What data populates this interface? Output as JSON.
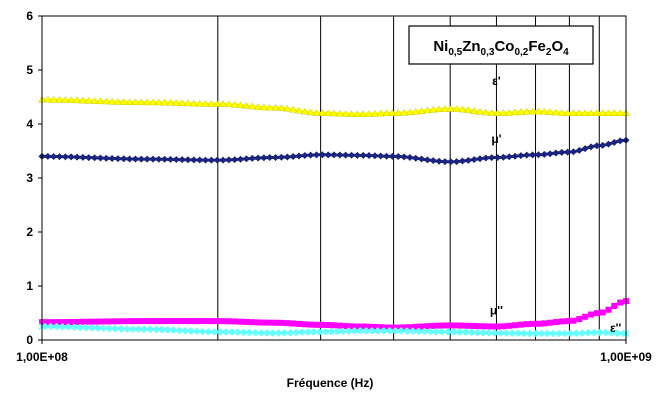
{
  "chart_data": {
    "type": "line",
    "title": "",
    "xlabel": "Fréquence (Hz)",
    "ylabel": "",
    "xscale": "log",
    "xlim": [
      100000000,
      1000000000
    ],
    "ylim": [
      0,
      6
    ],
    "x_ticklabels": [
      "1,00E+08",
      "1,00E+09"
    ],
    "y_ticklabels": [
      "0",
      "1",
      "2",
      "3",
      "4",
      "5",
      "6"
    ],
    "grid": "vertical log decade lines",
    "annotation": {
      "parts": [
        {
          "t": "Ni",
          "sub": "0,5"
        },
        {
          "t": "Zn",
          "sub": "0,3"
        },
        {
          "t": "Co",
          "sub": "0,2"
        },
        {
          "t": "Fe",
          "sub": "2"
        },
        {
          "t": "O",
          "sub": "4"
        }
      ]
    },
    "series": [
      {
        "name": "ε'",
        "color": "#ffff00",
        "marker": "triangle",
        "x": [
          100000000,
          150000000,
          200000000,
          250000000,
          300000000,
          350000000,
          400000000,
          500000000,
          600000000,
          700000000,
          800000000,
          900000000,
          1000000000
        ],
        "y": [
          4.45,
          4.4,
          4.37,
          4.3,
          4.2,
          4.18,
          4.2,
          4.28,
          4.2,
          4.23,
          4.2,
          4.2,
          4.2
        ]
      },
      {
        "name": "μ'",
        "color": "#1a237e",
        "marker": "diamond",
        "x": [
          100000000,
          150000000,
          200000000,
          250000000,
          300000000,
          350000000,
          400000000,
          500000000,
          600000000,
          700000000,
          800000000,
          900000000,
          1000000000
        ],
        "y": [
          3.4,
          3.35,
          3.33,
          3.38,
          3.43,
          3.42,
          3.4,
          3.3,
          3.38,
          3.43,
          3.48,
          3.6,
          3.7
        ]
      },
      {
        "name": "μ''",
        "color": "#ff00ff",
        "marker": "square",
        "x": [
          100000000,
          150000000,
          200000000,
          250000000,
          300000000,
          350000000,
          400000000,
          500000000,
          600000000,
          700000000,
          800000000,
          900000000,
          1000000000
        ],
        "y": [
          0.33,
          0.35,
          0.35,
          0.32,
          0.28,
          0.25,
          0.23,
          0.27,
          0.25,
          0.3,
          0.35,
          0.5,
          0.72
        ]
      },
      {
        "name": "ε''",
        "color": "#66ffff",
        "marker": "x",
        "x": [
          100000000,
          150000000,
          200000000,
          250000000,
          300000000,
          350000000,
          400000000,
          500000000,
          600000000,
          700000000,
          800000000,
          900000000,
          1000000000
        ],
        "y": [
          0.25,
          0.2,
          0.15,
          0.13,
          0.15,
          0.17,
          0.17,
          0.15,
          0.13,
          0.12,
          0.12,
          0.14,
          0.12
        ]
      }
    ],
    "series_labels": [
      {
        "text": "ε'",
        "x": 600000000,
        "y": 4.8
      },
      {
        "text": "μ'",
        "x": 600000000,
        "y": 3.72
      },
      {
        "text": "μ''",
        "x": 600000000,
        "y": 0.55
      },
      {
        "text": "ε''",
        "x": 960000000,
        "y": 0.22
      }
    ]
  }
}
